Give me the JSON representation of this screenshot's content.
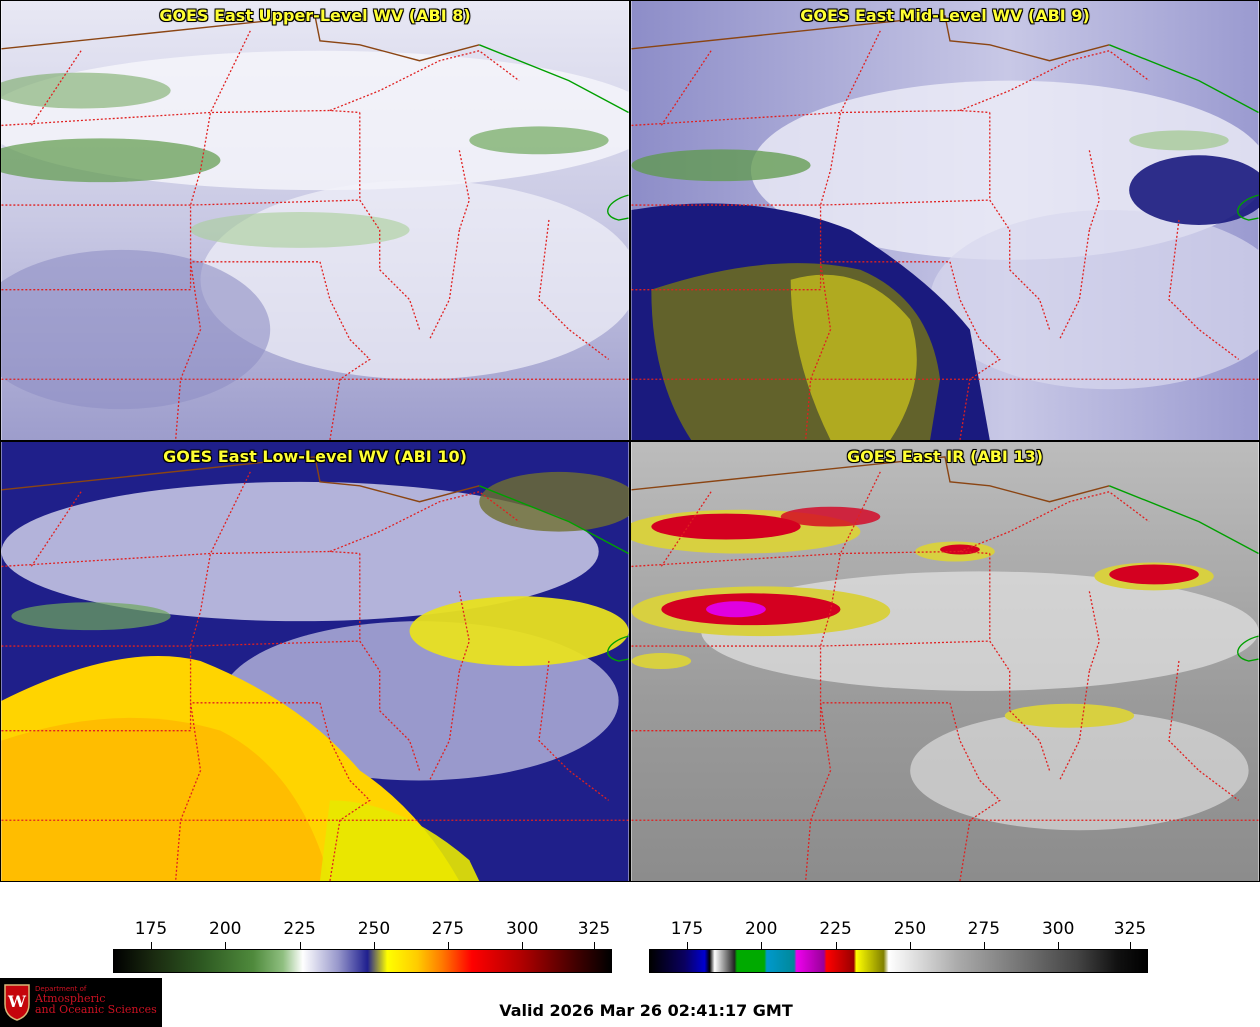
{
  "panels": [
    {
      "title": "GOES East Upper-Level WV (ABI 8)"
    },
    {
      "title": "GOES East Mid-Level WV (ABI 9)"
    },
    {
      "title": "GOES East Low-Level WV (ABI 10)"
    },
    {
      "title": "GOES East IR (ABI 13)"
    }
  ],
  "colorbar_wv": {
    "ticks": [
      "175",
      "200",
      "225",
      "250",
      "275",
      "300",
      "325"
    ],
    "colors": [
      "#000000",
      "#2e5a22",
      "#ffffff",
      "#1f1f8f",
      "#ffff00",
      "#ff0000",
      "#000000"
    ]
  },
  "colorbar_ir": {
    "ticks": [
      "175",
      "200",
      "225",
      "250",
      "275",
      "300",
      "325"
    ]
  },
  "logo": {
    "department": "Department of",
    "line1": "Atmospheric",
    "line2": "and Oceanic Sciences",
    "crest_letter": "W"
  },
  "valid_time": "Valid 2026 Mar 26 02:41:17 GMT",
  "colors": {
    "title_text": "#ffff33",
    "state_borders": "#e02020",
    "country_border": "#8b4513",
    "lake_border": "#00a000"
  }
}
